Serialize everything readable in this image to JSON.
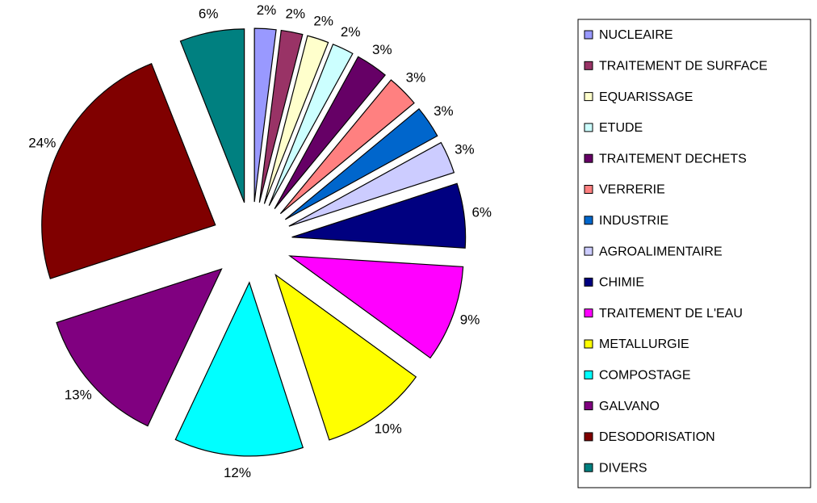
{
  "chart_data": {
    "type": "pie",
    "categories": [
      "NUCLEAIRE",
      "TRAITEMENT DE SURFACE",
      "EQUARISSAGE",
      "ETUDE",
      "TRAITEMENT DECHETS",
      "VERRERIE",
      "INDUSTRIE",
      "AGROALIMENTAIRE",
      "CHIMIE",
      "TRAITEMENT DE L'EAU",
      "METALLURGIE",
      "COMPOSTAGE",
      "GALVANO",
      "DESODORISATION",
      "DIVERS"
    ],
    "values": [
      2,
      2,
      2,
      2,
      3,
      3,
      3,
      3,
      6,
      9,
      10,
      12,
      13,
      24,
      6
    ],
    "value_labels": [
      "2%",
      "2%",
      "2%",
      "2%",
      "3%",
      "3%",
      "3%",
      "3%",
      "6%",
      "9%",
      "10%",
      "12%",
      "13%",
      "24%",
      "6%"
    ],
    "colors": [
      "#9999ff",
      "#993366",
      "#ffffcc",
      "#ccffff",
      "#660066",
      "#ff8080",
      "#0066cc",
      "#ccccff",
      "#000080",
      "#ff00ff",
      "#ffff00",
      "#00ffff",
      "#800080",
      "#800000",
      "#008080"
    ],
    "legend": "right"
  }
}
